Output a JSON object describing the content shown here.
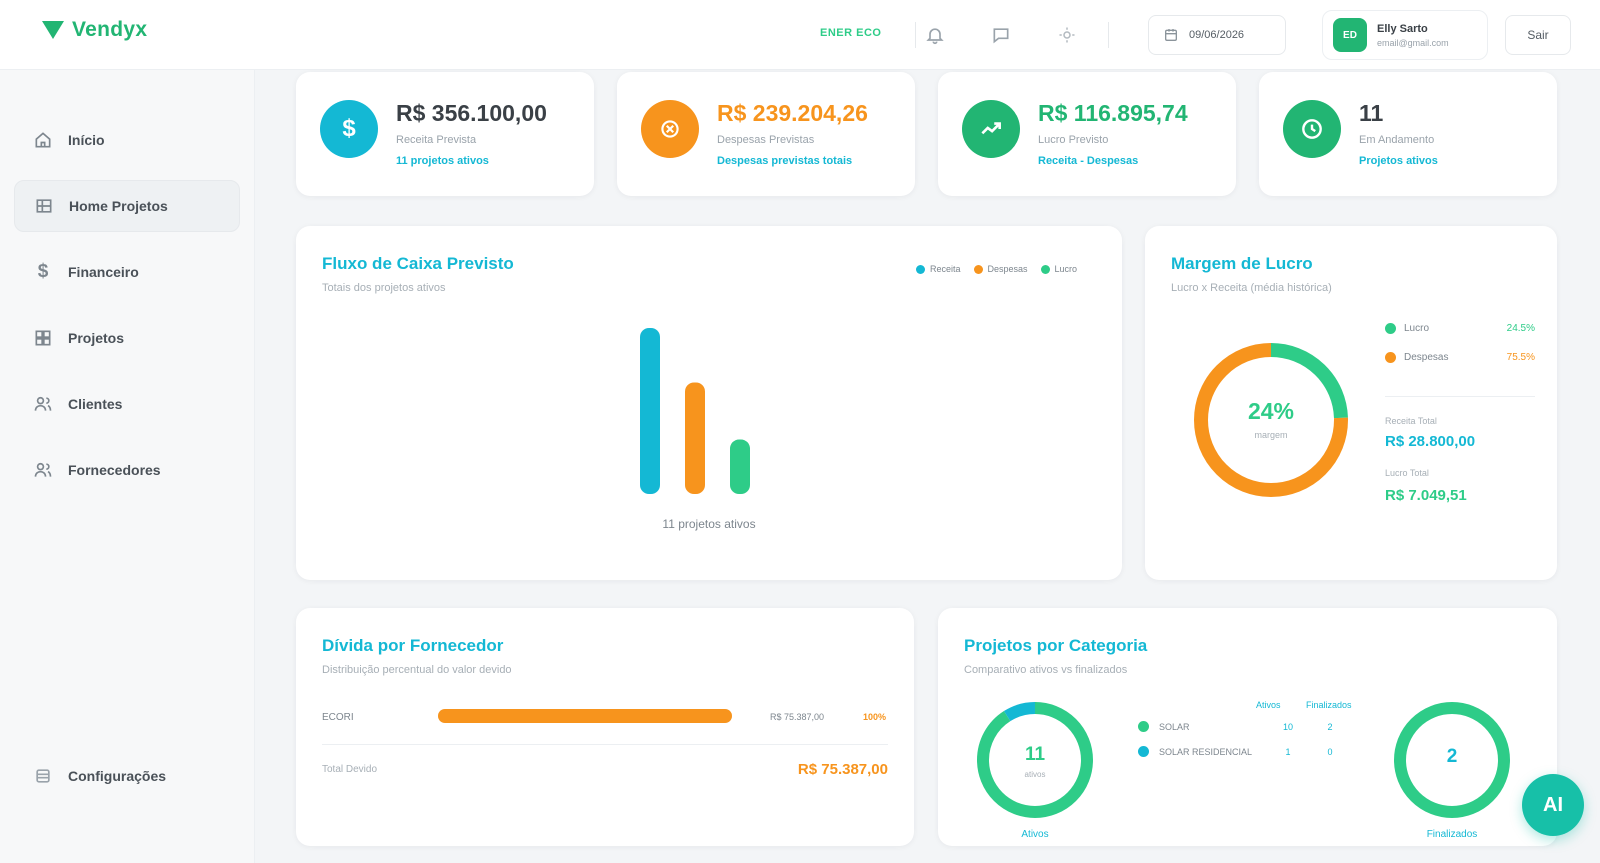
{
  "header": {
    "logo_text": "Vendyx",
    "env_badge": "ENER ECO",
    "date": "09/06/2026",
    "user": {
      "initials": "ED",
      "name": "Elly Sarto",
      "email": "email@gmail.com"
    },
    "logout_label": "Sair"
  },
  "sidebar": {
    "items": [
      {
        "label": "Início",
        "icon": "home-icon"
      },
      {
        "label": "Home Projetos",
        "icon": "grid-icon"
      },
      {
        "label": "Financeiro",
        "icon": "dollar-icon"
      },
      {
        "label": "Projetos",
        "icon": "projects-icon"
      },
      {
        "label": "Clientes",
        "icon": "users-icon"
      },
      {
        "label": "Fornecedores",
        "icon": "suppliers-icon"
      }
    ],
    "settings_label": "Configurações"
  },
  "kpis": [
    {
      "value": "R$ 356.100,00",
      "label": "Receita Prevista",
      "link": "11 projetos ativos",
      "color": "#14b8d4",
      "value_color": "#3a4046",
      "icon": "dollar-icon"
    },
    {
      "value": "R$ 239.204,26",
      "label": "Despesas Previstas",
      "link": "Despesas previstas totais",
      "color": "#f7941d",
      "value_color": "#f7941d",
      "icon": "wallet-icon"
    },
    {
      "value": "R$ 116.895,74",
      "label": "Lucro Previsto",
      "link": "Receita - Despesas",
      "color": "#22b573",
      "value_color": "#22b573",
      "icon": "trend-up-icon"
    },
    {
      "value": "11",
      "label": "Em Andamento",
      "link": "Projetos ativos",
      "color": "#22b573",
      "value_color": "#3a4046",
      "icon": "clock-icon"
    }
  ],
  "cashflow": {
    "title": "Fluxo de Caixa Previsto",
    "subtitle": "Totais dos projetos ativos",
    "caption": "11 projetos ativos",
    "legend": [
      "Receita",
      "Despesas",
      "Lucro"
    ]
  },
  "margin": {
    "title": "Margem de Lucro",
    "subtitle": "Lucro x Receita (média histórica)",
    "center_value": "24%",
    "center_label": "margem",
    "legend": [
      {
        "label": "Lucro",
        "value": "24.5%",
        "color": "#2ecc88"
      },
      {
        "label": "Despesas",
        "value": "75.5%",
        "color": "#f7941d"
      }
    ],
    "receita_label": "Receita Total",
    "receita_value": "R$ 28.800,00",
    "lucro_label": "Lucro Total",
    "lucro_value": "R$ 7.049,51"
  },
  "debt": {
    "title": "Dívida por Fornecedor",
    "subtitle": "Distribuição percentual do valor devido",
    "rows": [
      {
        "name": "ECORI",
        "amount": "R$ 75.387,00",
        "pct": "100%",
        "fraction": 1.0
      }
    ],
    "total_label": "Total Devido",
    "total_value": "R$ 75.387,00"
  },
  "categories": {
    "title": "Projetos por Categoria",
    "subtitle": "Comparativo ativos vs finalizados",
    "active_count": "11",
    "active_sub": "ativos",
    "active_caption": "Ativos",
    "final_count": "2",
    "final_caption": "Finalizados",
    "col_active": "Ativos",
    "col_final": "Finalizados",
    "rows": [
      {
        "name": "SOLAR",
        "active": "10",
        "final": "2",
        "color": "#2ecc88"
      },
      {
        "name": "SOLAR RESIDENCIAL",
        "active": "1",
        "final": "0",
        "color": "#14b8d4"
      }
    ]
  },
  "ai_button_label": "AI",
  "chart_data": [
    {
      "type": "bar",
      "title": "Fluxo de Caixa Previsto",
      "categories": [
        "11 projetos ativos"
      ],
      "series": [
        {
          "name": "Receita",
          "values": [
            356100.0
          ]
        },
        {
          "name": "Despesas",
          "values": [
            239204.26
          ]
        },
        {
          "name": "Lucro",
          "values": [
            116895.74
          ]
        }
      ],
      "colors": [
        "#14b8d4",
        "#f7941d",
        "#2ecc88"
      ]
    },
    {
      "type": "pie",
      "title": "Margem de Lucro",
      "labels": [
        "Lucro",
        "Despesas"
      ],
      "values": [
        24.5,
        75.5
      ],
      "colors": [
        "#2ecc88",
        "#f7941d"
      ]
    },
    {
      "type": "pie",
      "title": "Projetos por Categoria - ativos",
      "labels": [
        "SOLAR",
        "SOLAR RESIDENCIAL"
      ],
      "values": [
        10,
        1
      ],
      "colors": [
        "#2ecc88",
        "#14b8d4"
      ]
    },
    {
      "type": "pie",
      "title": "Projetos por Categoria - finalizados",
      "labels": [
        "SOLAR",
        "SOLAR RESIDENCIAL"
      ],
      "values": [
        2,
        0
      ],
      "colors": [
        "#2ecc88",
        "#14b8d4"
      ]
    }
  ]
}
